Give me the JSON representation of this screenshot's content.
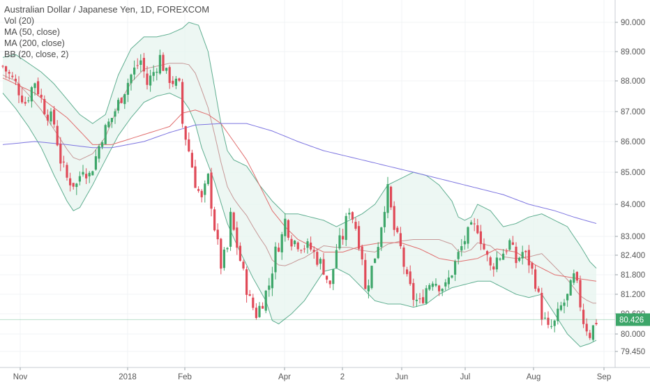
{
  "chart_data": {
    "type": "candlestick",
    "title": "Australian Dollar / Japanese Yen, 1D, FOREXCOM",
    "indicators": [
      "Vol (20)",
      "MA (50, close)",
      "MA (200, close)",
      "BB (20, close, 2)"
    ],
    "x_tick_labels": [
      "Nov",
      "2018",
      "Feb",
      "Apr",
      "2",
      "Jun",
      "Jul",
      "Aug",
      "Sep"
    ],
    "y_tick_labels": [
      "90.000",
      "89.000",
      "88.000",
      "87.000",
      "86.000",
      "85.000",
      "84.000",
      "83.000",
      "82.400",
      "81.800",
      "81.200",
      "80.600",
      "80.000",
      "79.450"
    ],
    "y_axis_scale": "log",
    "ylim": [
      79.3,
      90.3
    ],
    "last_price": "80.426",
    "colors": {
      "up": "#3da669",
      "down": "#e04a58",
      "bb_band": "#5fae90",
      "bb_fill": "#e7f4ef",
      "ma50": "#e06e6e",
      "ma200": "#7b73e0",
      "bb_basis": "#b56f6f",
      "price_line": "#3da669"
    },
    "close_path": [
      [
        0,
        88.5
      ],
      [
        4,
        87.9
      ],
      [
        7,
        87.3
      ],
      [
        10,
        88.0
      ],
      [
        13,
        87.1
      ],
      [
        16,
        86.6
      ],
      [
        18,
        85.4
      ],
      [
        20,
        84.8
      ],
      [
        23,
        84.6
      ],
      [
        25,
        85.2
      ],
      [
        27,
        84.9
      ],
      [
        29,
        85.5
      ],
      [
        31,
        86.2
      ],
      [
        34,
        86.8
      ],
      [
        37,
        87.5
      ],
      [
        40,
        88.2
      ],
      [
        43,
        88.7
      ],
      [
        45,
        87.9
      ],
      [
        47,
        88.3
      ],
      [
        49,
        88.8
      ],
      [
        51,
        88.2
      ],
      [
        53,
        88.0
      ],
      [
        55,
        87.8
      ],
      [
        56,
        86.6
      ],
      [
        58,
        85.7
      ],
      [
        60,
        84.7
      ],
      [
        62,
        84.1
      ],
      [
        64,
        84.8
      ],
      [
        66,
        83.3
      ],
      [
        68,
        82.1
      ],
      [
        70,
        82.6
      ],
      [
        71,
        83.6
      ],
      [
        73,
        82.7
      ],
      [
        75,
        81.8
      ],
      [
        77,
        81.0
      ],
      [
        79,
        80.6
      ],
      [
        81,
        81.0
      ],
      [
        83,
        81.5
      ],
      [
        85,
        82.5
      ],
      [
        87,
        83.0
      ],
      [
        88,
        83.5
      ],
      [
        90,
        82.9
      ],
      [
        92,
        82.8
      ],
      [
        94,
        82.7
      ],
      [
        96,
        82.6
      ],
      [
        98,
        82.3
      ],
      [
        100,
        82.0
      ],
      [
        102,
        81.4
      ],
      [
        104,
        82.6
      ],
      [
        106,
        83.0
      ],
      [
        108,
        83.9
      ],
      [
        110,
        83.3
      ],
      [
        112,
        82.4
      ],
      [
        113,
        81.3
      ],
      [
        115,
        82.0
      ],
      [
        117,
        82.8
      ],
      [
        119,
        84.0
      ],
      [
        120,
        84.4
      ],
      [
        122,
        83.2
      ],
      [
        124,
        82.6
      ],
      [
        126,
        81.6
      ],
      [
        128,
        81.1
      ],
      [
        130,
        80.9
      ],
      [
        132,
        81.4
      ],
      [
        134,
        81.7
      ],
      [
        136,
        81.5
      ],
      [
        138,
        81.4
      ],
      [
        140,
        81.9
      ],
      [
        142,
        82.4
      ],
      [
        144,
        82.9
      ],
      [
        146,
        83.2
      ],
      [
        148,
        83.3
      ],
      [
        150,
        82.6
      ],
      [
        152,
        82.0
      ],
      [
        154,
        82.3
      ],
      [
        156,
        82.5
      ],
      [
        158,
        82.8
      ],
      [
        160,
        82.2
      ],
      [
        162,
        82.5
      ],
      [
        164,
        82.2
      ],
      [
        166,
        81.6
      ],
      [
        168,
        80.6
      ],
      [
        170,
        80.1
      ],
      [
        172,
        80.3
      ],
      [
        174,
        80.8
      ],
      [
        176,
        81.1
      ],
      [
        178,
        81.7
      ],
      [
        179,
        81.4
      ],
      [
        181,
        80.4
      ],
      [
        183,
        80.0
      ],
      [
        185,
        80.4
      ]
    ],
    "ma50": [
      [
        0,
        88.1
      ],
      [
        10,
        87.6
      ],
      [
        20,
        86.8
      ],
      [
        28,
        85.9
      ],
      [
        34,
        85.9
      ],
      [
        40,
        86.1
      ],
      [
        46,
        86.3
      ],
      [
        52,
        86.5
      ],
      [
        56,
        86.95
      ],
      [
        60,
        87.05
      ],
      [
        64,
        86.9
      ],
      [
        68,
        86.6
      ],
      [
        72,
        86.0
      ],
      [
        76,
        85.4
      ],
      [
        80,
        84.6
      ],
      [
        84,
        83.8
      ],
      [
        88,
        83.3
      ],
      [
        92,
        82.9
      ],
      [
        96,
        82.7
      ],
      [
        100,
        82.5
      ],
      [
        106,
        82.5
      ],
      [
        112,
        82.7
      ],
      [
        118,
        82.8
      ],
      [
        124,
        82.8
      ],
      [
        130,
        82.6
      ],
      [
        136,
        82.3
      ],
      [
        142,
        82.2
      ],
      [
        148,
        82.3
      ],
      [
        154,
        82.6
      ],
      [
        160,
        82.5
      ],
      [
        166,
        82.1
      ],
      [
        172,
        81.8
      ],
      [
        178,
        81.7
      ],
      [
        185,
        81.6
      ]
    ],
    "ma200": [
      [
        0,
        85.9
      ],
      [
        10,
        86.0
      ],
      [
        20,
        85.9
      ],
      [
        28,
        85.8
      ],
      [
        34,
        85.8
      ],
      [
        44,
        86.0
      ],
      [
        52,
        86.3
      ],
      [
        60,
        86.55
      ],
      [
        68,
        86.6
      ],
      [
        76,
        86.6
      ],
      [
        84,
        86.35
      ],
      [
        92,
        86.0
      ],
      [
        100,
        85.7
      ],
      [
        108,
        85.5
      ],
      [
        116,
        85.3
      ],
      [
        124,
        85.1
      ],
      [
        132,
        84.9
      ],
      [
        140,
        84.7
      ],
      [
        148,
        84.5
      ],
      [
        156,
        84.3
      ],
      [
        164,
        84.0
      ],
      [
        172,
        83.8
      ],
      [
        178,
        83.6
      ],
      [
        185,
        83.4
      ]
    ],
    "bb_upper": [
      [
        0,
        88.8
      ],
      [
        4,
        88.9
      ],
      [
        8,
        88.6
      ],
      [
        12,
        88.3
      ],
      [
        16,
        87.9
      ],
      [
        20,
        87.4
      ],
      [
        24,
        86.9
      ],
      [
        28,
        86.6
      ],
      [
        32,
        86.9
      ],
      [
        36,
        88.2
      ],
      [
        40,
        89.1
      ],
      [
        44,
        89.5
      ],
      [
        48,
        89.5
      ],
      [
        52,
        89.6
      ],
      [
        56,
        89.8
      ],
      [
        58,
        90.0
      ],
      [
        61,
        89.9
      ],
      [
        64,
        89.0
      ],
      [
        66,
        87.8
      ],
      [
        68,
        86.6
      ],
      [
        70,
        85.7
      ],
      [
        72,
        85.4
      ],
      [
        76,
        85.2
      ],
      [
        80,
        84.6
      ],
      [
        84,
        84.1
      ],
      [
        88,
        83.7
      ],
      [
        92,
        83.7
      ],
      [
        96,
        83.6
      ],
      [
        100,
        83.5
      ],
      [
        104,
        83.3
      ],
      [
        108,
        83.5
      ],
      [
        112,
        83.7
      ],
      [
        116,
        84.0
      ],
      [
        120,
        84.6
      ],
      [
        124,
        84.8
      ],
      [
        128,
        85.0
      ],
      [
        132,
        84.9
      ],
      [
        136,
        84.6
      ],
      [
        140,
        84.1
      ],
      [
        142,
        83.6
      ],
      [
        144,
        83.5
      ],
      [
        146,
        83.6
      ],
      [
        148,
        84.0
      ],
      [
        152,
        83.8
      ],
      [
        156,
        83.3
      ],
      [
        160,
        83.4
      ],
      [
        164,
        83.6
      ],
      [
        168,
        83.7
      ],
      [
        172,
        83.5
      ],
      [
        176,
        83.3
      ],
      [
        180,
        82.7
      ],
      [
        183,
        82.2
      ],
      [
        185,
        82.0
      ]
    ],
    "bb_lower": [
      [
        0,
        87.6
      ],
      [
        4,
        87.1
      ],
      [
        8,
        86.5
      ],
      [
        12,
        85.8
      ],
      [
        16,
        84.9
      ],
      [
        20,
        84.1
      ],
      [
        22,
        83.8
      ],
      [
        24,
        83.9
      ],
      [
        28,
        84.6
      ],
      [
        32,
        85.4
      ],
      [
        36,
        86.2
      ],
      [
        40,
        86.8
      ],
      [
        44,
        87.3
      ],
      [
        48,
        87.5
      ],
      [
        52,
        87.6
      ],
      [
        56,
        87.4
      ],
      [
        58,
        87.1
      ],
      [
        60,
        86.6
      ],
      [
        62,
        85.8
      ],
      [
        66,
        84.7
      ],
      [
        70,
        83.4
      ],
      [
        74,
        82.5
      ],
      [
        78,
        81.7
      ],
      [
        82,
        81.0
      ],
      [
        84,
        80.4
      ],
      [
        86,
        80.3
      ],
      [
        90,
        80.6
      ],
      [
        94,
        81.0
      ],
      [
        98,
        81.6
      ],
      [
        100,
        81.9
      ],
      [
        104,
        82.0
      ],
      [
        108,
        81.8
      ],
      [
        112,
        81.4
      ],
      [
        116,
        81.0
      ],
      [
        120,
        80.9
      ],
      [
        124,
        80.9
      ],
      [
        128,
        80.8
      ],
      [
        132,
        80.9
      ],
      [
        136,
        81.2
      ],
      [
        140,
        81.4
      ],
      [
        144,
        81.5
      ],
      [
        148,
        81.6
      ],
      [
        152,
        81.6
      ],
      [
        156,
        81.4
      ],
      [
        160,
        81.2
      ],
      [
        164,
        81.1
      ],
      [
        168,
        81.2
      ],
      [
        172,
        80.6
      ],
      [
        176,
        80.0
      ],
      [
        180,
        79.6
      ],
      [
        183,
        79.7
      ],
      [
        185,
        79.8
      ]
    ]
  }
}
